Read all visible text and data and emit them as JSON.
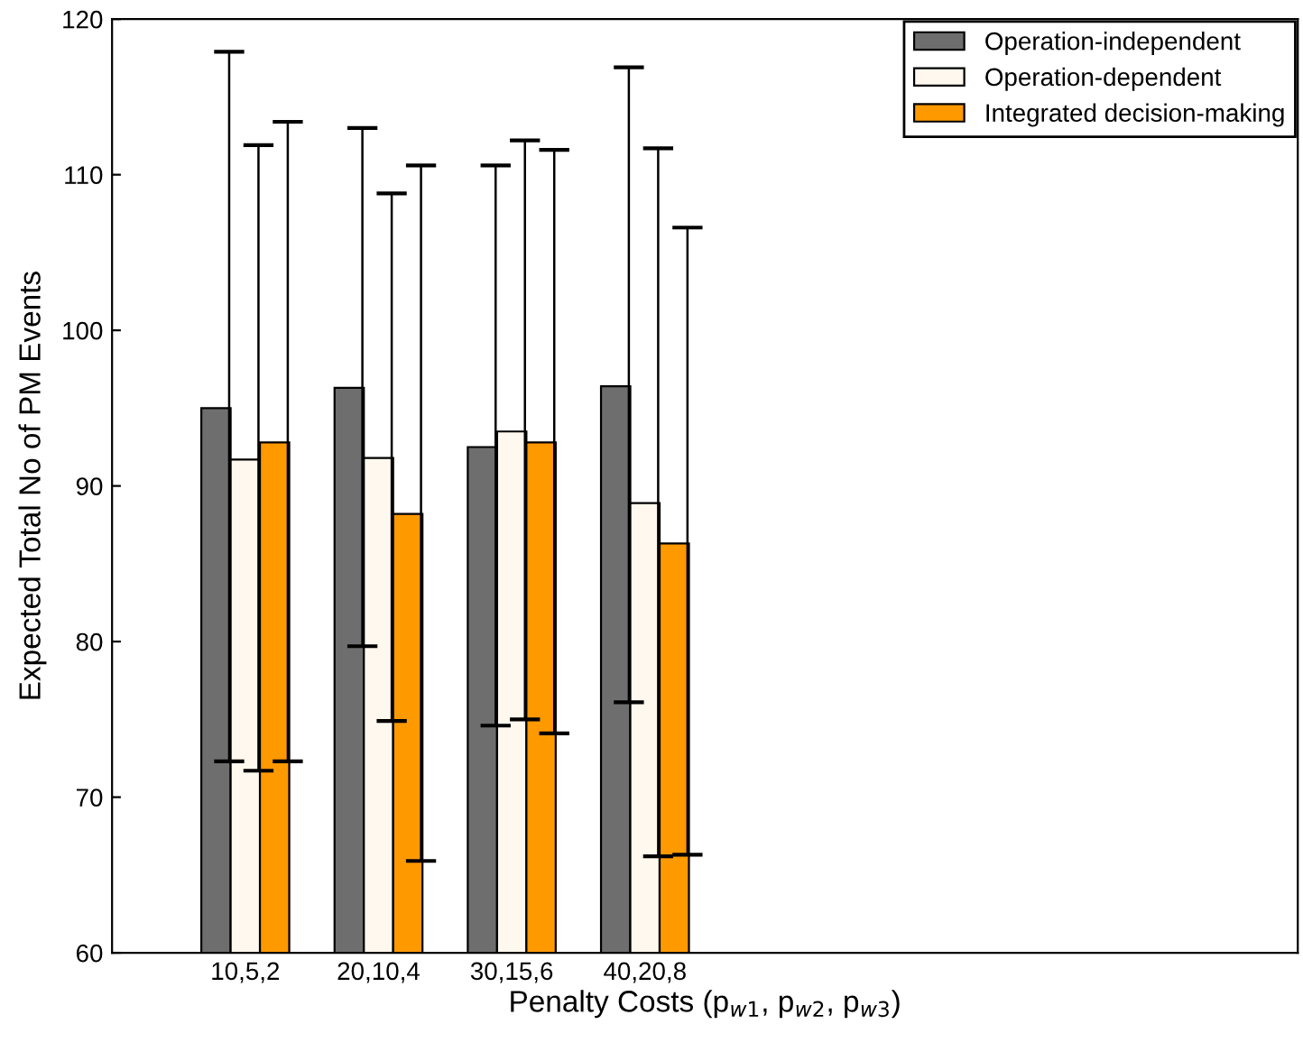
{
  "chart_data": {
    "type": "bar",
    "xlabel": "Penalty Costs (p$_{w1}$, p$_{w2}$, p$_{w3}$)",
    "ylabel": "Expected Total No of PM Events",
    "categories": [
      "10,5,2",
      "20,10,4",
      "30,15,6",
      "40,20,8"
    ],
    "series": [
      {
        "name": "Operation-independent",
        "color": "#6e6e6e",
        "values": [
          95.0,
          96.3,
          92.5,
          96.4
        ],
        "errors": [
          [
            72.3,
            117.9
          ],
          [
            79.7,
            113.0
          ],
          [
            74.6,
            110.6
          ],
          [
            76.1,
            116.9
          ]
        ]
      },
      {
        "name": "Operation-dependent",
        "color": "#fff8ee",
        "values": [
          91.7,
          91.8,
          93.5,
          88.9
        ],
        "errors": [
          [
            71.7,
            111.9
          ],
          [
            74.9,
            108.8
          ],
          [
            75.0,
            112.2
          ],
          [
            66.2,
            111.7
          ]
        ]
      },
      {
        "name": "Integrated decision-making",
        "color": "#ff9900",
        "values": [
          92.8,
          88.2,
          92.8,
          86.3
        ],
        "errors": [
          [
            72.3,
            113.4
          ],
          [
            65.9,
            110.6
          ],
          [
            74.1,
            111.6
          ],
          [
            66.3,
            106.6
          ]
        ]
      }
    ],
    "ylim": [
      60,
      120
    ],
    "yticks": [
      60,
      70,
      80,
      90,
      100,
      110,
      120
    ],
    "grid": false,
    "legend": "top right"
  }
}
